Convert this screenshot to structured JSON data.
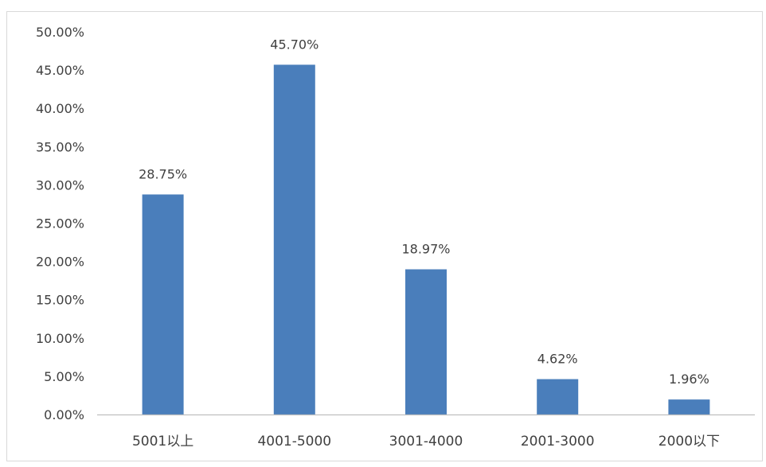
{
  "chart_data": {
    "type": "bar",
    "categories": [
      "5001以上",
      "4001-5000",
      "3001-4000",
      "2001-3000",
      "2000以下"
    ],
    "values": [
      28.75,
      45.7,
      18.97,
      4.62,
      1.96
    ],
    "data_labels": [
      "28.75%",
      "45.70%",
      "18.97%",
      "4.62%",
      "1.96%"
    ],
    "title": "",
    "xlabel": "",
    "ylabel": "",
    "ylim": [
      0,
      50
    ],
    "yticks": [
      0,
      5,
      10,
      15,
      20,
      25,
      30,
      35,
      40,
      45,
      50
    ],
    "ytick_labels": [
      "0.00%",
      "5.00%",
      "10.00%",
      "15.00%",
      "20.00%",
      "25.00%",
      "30.00%",
      "35.00%",
      "40.00%",
      "45.00%",
      "50.00%"
    ],
    "grid": false,
    "legend": "none",
    "bar_color": "#4a7ebb",
    "axis_color": "#bfbfbf",
    "text_color": "#404040"
  }
}
